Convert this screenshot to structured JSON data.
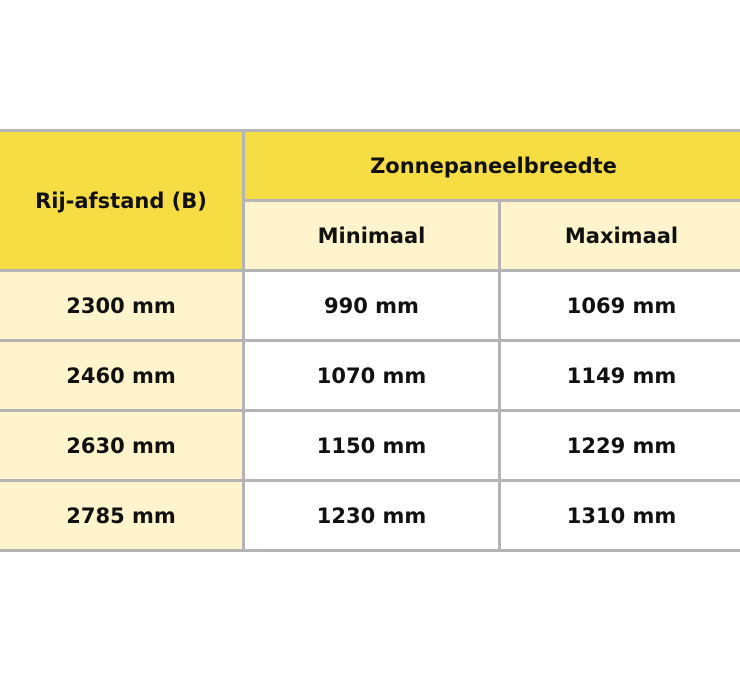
{
  "table": {
    "row_header": "Rij-afstand (B)",
    "group_header": "Zonnepaneelbreedte",
    "sub_headers": [
      "Minimaal",
      "Maximaal"
    ],
    "rows": [
      {
        "afstand": "2300 mm",
        "min": "990 mm",
        "max": "1069 mm"
      },
      {
        "afstand": "2460 mm",
        "min": "1070 mm",
        "max": "1149 mm"
      },
      {
        "afstand": "2630 mm",
        "min": "1150 mm",
        "max": "1229 mm"
      },
      {
        "afstand": "2785 mm",
        "min": "1230 mm",
        "max": "1310 mm"
      }
    ]
  },
  "colors": {
    "header": "#f7dd44",
    "subheader": "#fff4cc",
    "border": "#b4b4b4"
  }
}
